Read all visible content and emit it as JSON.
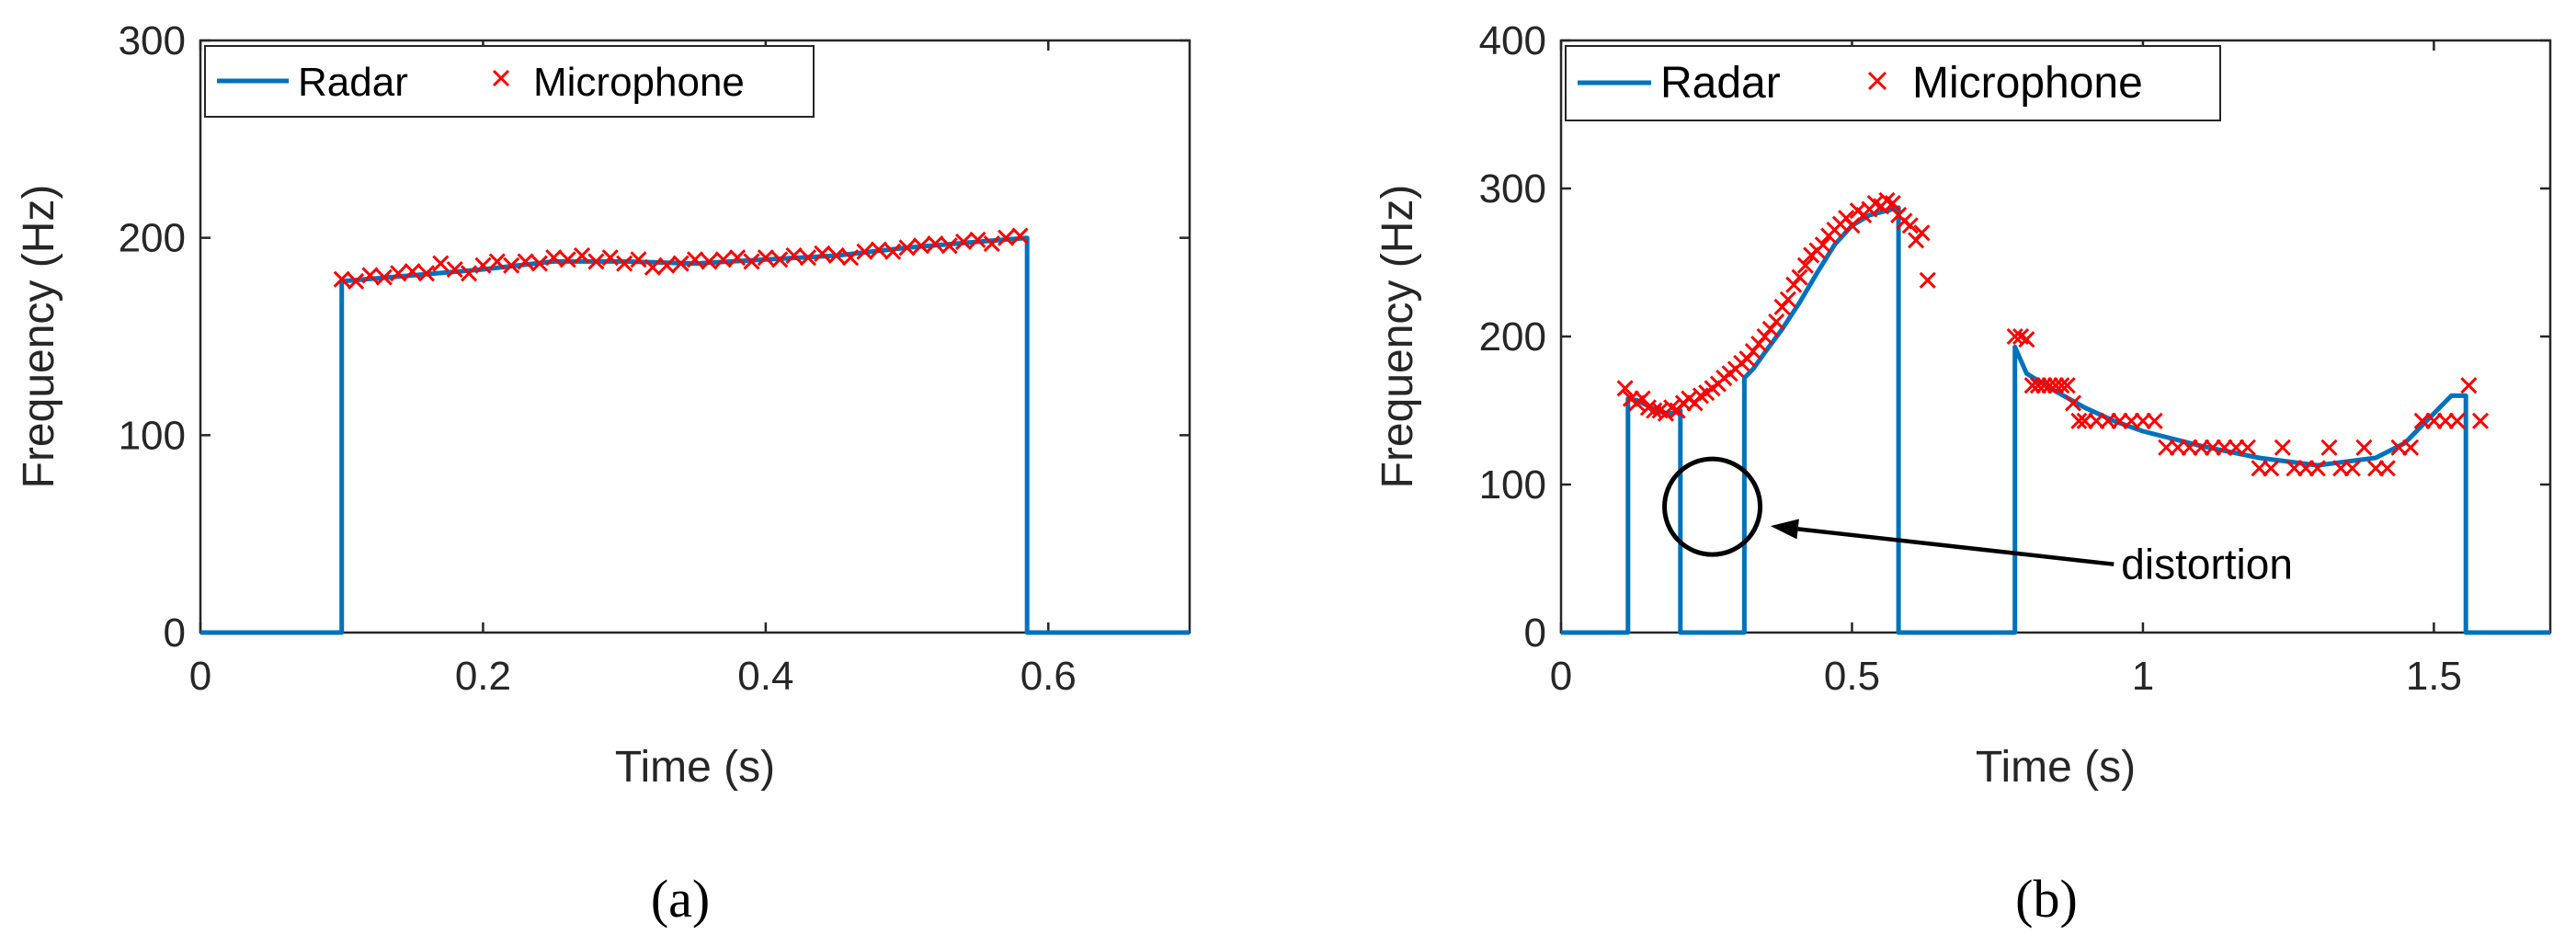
{
  "colors": {
    "radar": "#0072BD",
    "microphone": "#FF0000"
  },
  "chart_data": [
    {
      "type": "line",
      "caption": "(a)",
      "xlabel": "Time (s)",
      "ylabel": "Frequency (Hz)",
      "xlim": [
        0,
        0.7
      ],
      "ylim": [
        0,
        300
      ],
      "xticks": [
        "0",
        "0.2",
        "0.4",
        "0.6"
      ],
      "xtick_values": [
        0,
        0.2,
        0.4,
        0.6
      ],
      "yticks": [
        "0",
        "100",
        "200",
        "300"
      ],
      "ytick_values": [
        0,
        100,
        200,
        300
      ],
      "legend": {
        "position": "top-left",
        "entries": [
          "Radar",
          "Microphone"
        ]
      },
      "series": [
        {
          "name": "Radar",
          "style": "line",
          "x": [
            0,
            0.1,
            0.1,
            0.15,
            0.2,
            0.25,
            0.3,
            0.35,
            0.4,
            0.45,
            0.5,
            0.55,
            0.585,
            0.585,
            0.7
          ],
          "y": [
            0,
            0,
            178,
            181,
            184,
            188,
            188,
            187,
            189,
            191,
            195,
            198,
            200,
            0,
            0
          ]
        },
        {
          "name": "Microphone",
          "style": "marker-x",
          "x": [
            0.1,
            0.11,
            0.12,
            0.13,
            0.14,
            0.15,
            0.16,
            0.17,
            0.18,
            0.19,
            0.2,
            0.21,
            0.22,
            0.23,
            0.24,
            0.25,
            0.26,
            0.27,
            0.28,
            0.29,
            0.3,
            0.31,
            0.32,
            0.33,
            0.34,
            0.35,
            0.36,
            0.37,
            0.38,
            0.39,
            0.4,
            0.41,
            0.42,
            0.43,
            0.44,
            0.45,
            0.46,
            0.47,
            0.48,
            0.49,
            0.5,
            0.51,
            0.52,
            0.53,
            0.54,
            0.55,
            0.56,
            0.57,
            0.58
          ],
          "y": [
            179,
            178,
            181,
            180,
            182,
            183,
            182,
            187,
            184,
            182,
            186,
            188,
            186,
            188,
            187,
            190,
            189,
            191,
            188,
            190,
            187,
            189,
            185,
            186,
            187,
            189,
            188,
            189,
            190,
            188,
            190,
            189,
            191,
            190,
            192,
            191,
            190,
            193,
            194,
            193,
            195,
            196,
            197,
            196,
            198,
            199,
            197,
            200,
            201
          ]
        }
      ]
    },
    {
      "type": "line",
      "caption": "(b)",
      "xlabel": "Time (s)",
      "ylabel": "Frequency (Hz)",
      "xlim": [
        0,
        1.7
      ],
      "ylim": [
        0,
        400
      ],
      "xticks": [
        "0",
        "0.5",
        "1",
        "1.5"
      ],
      "xtick_values": [
        0,
        0.5,
        1,
        1.5
      ],
      "yticks": [
        "0",
        "100",
        "200",
        "300",
        "400"
      ],
      "ytick_values": [
        0,
        100,
        200,
        300,
        400
      ],
      "legend": {
        "position": "top-left",
        "entries": [
          "Radar",
          "Microphone"
        ]
      },
      "annotations": [
        {
          "text": "distortion",
          "circle_center": [
            0.26,
            85
          ],
          "arrow_from": [
            0.95,
            30
          ],
          "arrow_to": [
            0.36,
            72
          ]
        }
      ],
      "series": [
        {
          "name": "Radar",
          "style": "line",
          "x": [
            0,
            0.115,
            0.115,
            0.13,
            0.15,
            0.17,
            0.19,
            0.205,
            0.205,
            0.315,
            0.315,
            0.33,
            0.35,
            0.38,
            0.41,
            0.44,
            0.47,
            0.5,
            0.53,
            0.56,
            0.58,
            0.58,
            0.78,
            0.78,
            0.8,
            0.85,
            0.9,
            0.95,
            1.0,
            1.1,
            1.2,
            1.3,
            1.4,
            1.45,
            1.5,
            1.53,
            1.555,
            1.555,
            1.7
          ],
          "y": [
            0,
            0,
            158,
            157,
            153,
            149,
            148,
            150,
            0,
            0,
            172,
            178,
            189,
            205,
            223,
            243,
            262,
            275,
            282,
            285,
            287,
            0,
            0,
            193,
            175,
            163,
            152,
            143,
            136,
            126,
            118,
            113,
            118,
            128,
            148,
            160,
            160,
            0,
            0
          ]
        },
        {
          "name": "Microphone",
          "style": "marker-x",
          "x": [
            0.11,
            0.12,
            0.13,
            0.14,
            0.15,
            0.16,
            0.17,
            0.18,
            0.19,
            0.2,
            0.21,
            0.22,
            0.23,
            0.24,
            0.25,
            0.26,
            0.27,
            0.28,
            0.29,
            0.3,
            0.31,
            0.32,
            0.33,
            0.34,
            0.35,
            0.36,
            0.37,
            0.38,
            0.39,
            0.4,
            0.41,
            0.42,
            0.43,
            0.44,
            0.45,
            0.46,
            0.47,
            0.48,
            0.49,
            0.5,
            0.51,
            0.52,
            0.53,
            0.54,
            0.55,
            0.56,
            0.57,
            0.58,
            0.59,
            0.6,
            0.61,
            0.62,
            0.63,
            0.78,
            0.79,
            0.8,
            0.81,
            0.82,
            0.83,
            0.84,
            0.85,
            0.86,
            0.87,
            0.88,
            0.89,
            0.9,
            0.92,
            0.94,
            0.96,
            0.98,
            1.0,
            1.02,
            1.04,
            1.06,
            1.08,
            1.1,
            1.12,
            1.14,
            1.16,
            1.18,
            1.2,
            1.22,
            1.24,
            1.26,
            1.28,
            1.3,
            1.32,
            1.34,
            1.36,
            1.38,
            1.4,
            1.42,
            1.44,
            1.46,
            1.48,
            1.5,
            1.52,
            1.54,
            1.56,
            1.58
          ],
          "y": [
            165,
            158,
            155,
            158,
            152,
            150,
            150,
            148,
            152,
            150,
            155,
            158,
            155,
            160,
            162,
            165,
            168,
            172,
            175,
            178,
            182,
            185,
            190,
            195,
            200,
            205,
            210,
            220,
            225,
            235,
            240,
            248,
            255,
            258,
            262,
            268,
            272,
            276,
            280,
            275,
            285,
            282,
            286,
            290,
            288,
            292,
            290,
            282,
            278,
            275,
            265,
            270,
            238,
            200,
            200,
            198,
            167,
            167,
            167,
            167,
            167,
            167,
            167,
            155,
            143,
            143,
            143,
            143,
            143,
            143,
            143,
            143,
            125,
            125,
            125,
            125,
            125,
            125,
            125,
            125,
            111,
            111,
            125,
            111,
            111,
            111,
            125,
            111,
            111,
            125,
            111,
            111,
            125,
            125,
            143,
            143,
            143,
            143,
            167,
            143
          ]
        }
      ]
    }
  ]
}
